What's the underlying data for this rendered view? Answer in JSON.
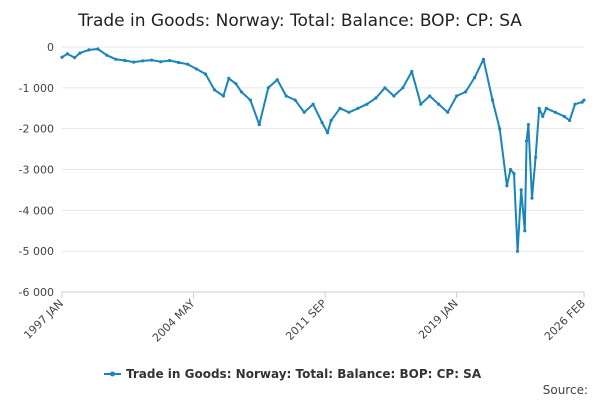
{
  "chart_data": {
    "type": "line",
    "title": "Trade in Goods: Norway: Total: Balance: BOP: CP: SA",
    "xlabel": "",
    "ylabel": "",
    "ylim": [
      -6000,
      0
    ],
    "yticks": [
      0,
      -1000,
      -2000,
      -3000,
      -4000,
      -5000,
      -6000
    ],
    "ytick_labels": [
      "0",
      "-1 000",
      "-2 000",
      "-3 000",
      "-4 000",
      "-5 000",
      "-6 000"
    ],
    "xlim": [
      1997.0,
      2026.1
    ],
    "xticks": [
      1997.0,
      2004.33,
      2011.67,
      2019.0,
      2026.1
    ],
    "xtick_labels": [
      "1997 JAN",
      "2004 MAY",
      "2011 SEP",
      "2019 JAN",
      "2026 FEB"
    ],
    "grid": true,
    "legend_position": "bottom",
    "source_label": "Source:",
    "series": [
      {
        "name": "Trade in Goods: Norway: Total: Balance: BOP: CP: SA",
        "color": "#1a85b8",
        "x": [
          1997.0,
          1997.3,
          1997.7,
          1998.0,
          1998.5,
          1999.0,
          1999.5,
          2000.0,
          2000.5,
          2001.0,
          2001.5,
          2002.0,
          2002.5,
          2003.0,
          2003.5,
          2004.0,
          2004.5,
          2005.0,
          2005.5,
          2006.0,
          2006.3,
          2006.7,
          2007.0,
          2007.5,
          2008.0,
          2008.5,
          2009.0,
          2009.5,
          2010.0,
          2010.5,
          2011.0,
          2011.5,
          2011.8,
          2012.0,
          2012.5,
          2013.0,
          2013.5,
          2014.0,
          2014.5,
          2015.0,
          2015.5,
          2016.0,
          2016.5,
          2017.0,
          2017.5,
          2018.0,
          2018.5,
          2019.0,
          2019.5,
          2020.0,
          2020.5,
          2021.0,
          2021.4,
          2021.8,
          2022.0,
          2022.2,
          2022.4,
          2022.6,
          2022.8,
          2022.9,
          2023.0,
          2023.2,
          2023.4,
          2023.6,
          2023.8,
          2024.0,
          2024.5,
          2025.0,
          2025.3,
          2025.6,
          2026.0,
          2026.1
        ],
        "values": [
          -250,
          -170,
          -260,
          -150,
          -70,
          -50,
          -200,
          -300,
          -330,
          -370,
          -340,
          -320,
          -360,
          -330,
          -380,
          -420,
          -540,
          -660,
          -1050,
          -1200,
          -770,
          -900,
          -1100,
          -1300,
          -1900,
          -1000,
          -800,
          -1200,
          -1300,
          -1600,
          -1400,
          -1850,
          -2100,
          -1800,
          -1500,
          -1600,
          -1500,
          -1400,
          -1250,
          -1000,
          -1200,
          -1000,
          -600,
          -1400,
          -1200,
          -1400,
          -1600,
          -1200,
          -1100,
          -750,
          -300,
          -1300,
          -2000,
          -3400,
          -3000,
          -3100,
          -5000,
          -3500,
          -4500,
          -2300,
          -1900,
          -3700,
          -2700,
          -1500,
          -1700,
          -1500,
          -1600,
          -1700,
          -1800,
          -1400,
          -1350,
          -1300
        ]
      }
    ]
  }
}
